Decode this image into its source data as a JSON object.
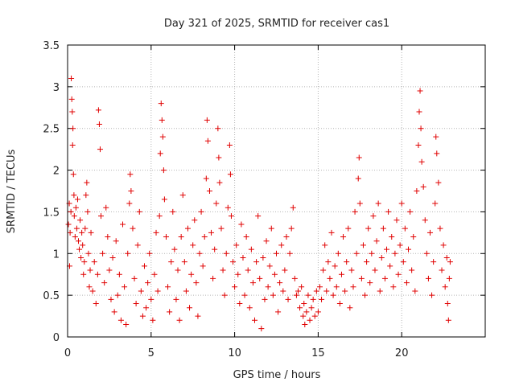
{
  "chart_data": {
    "type": "scatter",
    "title": "Day 321 of 2025, SRMTID for receiver cas1",
    "xlabel": "GPS time / hours",
    "ylabel": "SRMTID / TECUs",
    "xlim": [
      0,
      25
    ],
    "ylim": [
      0,
      3.5
    ],
    "x_ticks": [
      0,
      5,
      10,
      15,
      20
    ],
    "y_ticks": [
      0,
      0.5,
      1,
      1.5,
      2,
      2.5,
      3,
      3.5
    ],
    "x_tick_labels": [
      "0",
      "5",
      "10",
      "15",
      "20"
    ],
    "y_tick_labels": [
      "0",
      "0.5",
      "1",
      "1.5",
      "2",
      "2.5",
      "3",
      "3.5"
    ],
    "grid": true,
    "marker": "+",
    "color": "#e00000",
    "series": [
      {
        "name": "SRMTID",
        "points": [
          [
            0.05,
            1.35
          ],
          [
            0.1,
            1.6
          ],
          [
            0.12,
            0.85
          ],
          [
            0.15,
            1.25
          ],
          [
            0.2,
            1.5
          ],
          [
            0.22,
            3.1
          ],
          [
            0.25,
            2.85
          ],
          [
            0.28,
            2.7
          ],
          [
            0.3,
            2.3
          ],
          [
            0.32,
            2.5
          ],
          [
            0.35,
            1.95
          ],
          [
            0.38,
            1.7
          ],
          [
            0.4,
            1.45
          ],
          [
            0.45,
            1.2
          ],
          [
            0.5,
            1.55
          ],
          [
            0.55,
            1.3
          ],
          [
            0.6,
            1.65
          ],
          [
            0.65,
            1.15
          ],
          [
            0.7,
            1.05
          ],
          [
            0.75,
            1.4
          ],
          [
            0.8,
            0.95
          ],
          [
            0.85,
            1.25
          ],
          [
            0.9,
            1.1
          ],
          [
            0.95,
            0.75
          ],
          [
            1.0,
            0.9
          ],
          [
            1.05,
            1.3
          ],
          [
            1.1,
            1.7
          ],
          [
            1.15,
            1.85
          ],
          [
            1.2,
            1.5
          ],
          [
            1.25,
            1.0
          ],
          [
            1.3,
            0.6
          ],
          [
            1.35,
            0.8
          ],
          [
            1.4,
            1.25
          ],
          [
            1.5,
            0.55
          ],
          [
            1.6,
            0.9
          ],
          [
            1.7,
            0.4
          ],
          [
            1.8,
            0.75
          ],
          [
            1.85,
            2.72
          ],
          [
            1.9,
            2.55
          ],
          [
            1.95,
            2.25
          ],
          [
            2.0,
            1.45
          ],
          [
            2.1,
            1.0
          ],
          [
            2.2,
            0.65
          ],
          [
            2.3,
            1.55
          ],
          [
            2.4,
            1.2
          ],
          [
            2.5,
            0.8
          ],
          [
            2.6,
            0.45
          ],
          [
            2.7,
            0.95
          ],
          [
            2.8,
            0.3
          ],
          [
            2.9,
            1.15
          ],
          [
            3.0,
            0.5
          ],
          [
            3.1,
            0.75
          ],
          [
            3.2,
            0.2
          ],
          [
            3.3,
            1.35
          ],
          [
            3.4,
            0.6
          ],
          [
            3.5,
            0.15
          ],
          [
            3.6,
            1.0
          ],
          [
            3.7,
            1.6
          ],
          [
            3.75,
            1.95
          ],
          [
            3.8,
            1.75
          ],
          [
            3.9,
            1.3
          ],
          [
            4.0,
            0.7
          ],
          [
            4.1,
            0.4
          ],
          [
            4.2,
            1.1
          ],
          [
            4.3,
            1.5
          ],
          [
            4.4,
            0.55
          ],
          [
            4.5,
            0.25
          ],
          [
            4.6,
            0.85
          ],
          [
            4.7,
            0.35
          ],
          [
            4.8,
            0.65
          ],
          [
            4.9,
            1.0
          ],
          [
            5.0,
            0.45
          ],
          [
            5.1,
            0.2
          ],
          [
            5.2,
            0.75
          ],
          [
            5.3,
            1.25
          ],
          [
            5.4,
            0.55
          ],
          [
            5.5,
            1.45
          ],
          [
            5.55,
            2.2
          ],
          [
            5.6,
            2.8
          ],
          [
            5.65,
            2.6
          ],
          [
            5.7,
            2.4
          ],
          [
            5.75,
            2.0
          ],
          [
            5.8,
            1.65
          ],
          [
            5.9,
            1.2
          ],
          [
            6.0,
            0.6
          ],
          [
            6.1,
            0.3
          ],
          [
            6.2,
            0.9
          ],
          [
            6.3,
            1.5
          ],
          [
            6.4,
            1.05
          ],
          [
            6.5,
            0.45
          ],
          [
            6.6,
            0.8
          ],
          [
            6.7,
            0.2
          ],
          [
            6.8,
            1.2
          ],
          [
            6.9,
            1.7
          ],
          [
            7.0,
            0.9
          ],
          [
            7.1,
            0.55
          ],
          [
            7.2,
            1.3
          ],
          [
            7.3,
            0.35
          ],
          [
            7.4,
            0.75
          ],
          [
            7.5,
            1.1
          ],
          [
            7.6,
            1.4
          ],
          [
            7.7,
            0.65
          ],
          [
            7.8,
            0.25
          ],
          [
            7.9,
            1.0
          ],
          [
            8.0,
            1.5
          ],
          [
            8.1,
            0.85
          ],
          [
            8.2,
            1.2
          ],
          [
            8.3,
            1.9
          ],
          [
            8.35,
            2.6
          ],
          [
            8.4,
            2.35
          ],
          [
            8.5,
            1.75
          ],
          [
            8.6,
            1.25
          ],
          [
            8.7,
            0.7
          ],
          [
            8.8,
            1.05
          ],
          [
            8.9,
            1.6
          ],
          [
            9.0,
            2.5
          ],
          [
            9.05,
            2.15
          ],
          [
            9.1,
            1.85
          ],
          [
            9.2,
            1.3
          ],
          [
            9.3,
            0.8
          ],
          [
            9.4,
            0.5
          ],
          [
            9.5,
            1.0
          ],
          [
            9.6,
            1.55
          ],
          [
            9.7,
            2.3
          ],
          [
            9.75,
            1.95
          ],
          [
            9.8,
            1.45
          ],
          [
            9.9,
            0.9
          ],
          [
            10.0,
            0.6
          ],
          [
            10.1,
            1.1
          ],
          [
            10.2,
            0.75
          ],
          [
            10.3,
            0.4
          ],
          [
            10.4,
            1.35
          ],
          [
            10.5,
            0.95
          ],
          [
            10.6,
            0.5
          ],
          [
            10.7,
            1.2
          ],
          [
            10.8,
            0.8
          ],
          [
            10.9,
            0.35
          ],
          [
            11.0,
            1.05
          ],
          [
            11.1,
            0.65
          ],
          [
            11.2,
            0.2
          ],
          [
            11.3,
            0.9
          ],
          [
            11.4,
            1.45
          ],
          [
            11.5,
            0.7
          ],
          [
            11.6,
            0.1
          ],
          [
            11.7,
            0.95
          ],
          [
            11.8,
            0.45
          ],
          [
            11.9,
            1.15
          ],
          [
            12.0,
            0.6
          ],
          [
            12.1,
            0.85
          ],
          [
            12.2,
            1.3
          ],
          [
            12.3,
            0.5
          ],
          [
            12.4,
            0.75
          ],
          [
            12.5,
            1.0
          ],
          [
            12.6,
            0.3
          ],
          [
            12.7,
            0.65
          ],
          [
            12.8,
            1.1
          ],
          [
            12.9,
            0.55
          ],
          [
            13.0,
            0.8
          ],
          [
            13.1,
            1.2
          ],
          [
            13.2,
            0.45
          ],
          [
            13.3,
            1.0
          ],
          [
            13.4,
            1.3
          ],
          [
            13.5,
            1.55
          ],
          [
            13.6,
            0.7
          ],
          [
            13.7,
            0.5
          ],
          [
            13.8,
            0.55
          ],
          [
            13.9,
            0.35
          ],
          [
            14.0,
            0.6
          ],
          [
            14.1,
            0.25
          ],
          [
            14.15,
            0.4
          ],
          [
            14.2,
            0.15
          ],
          [
            14.3,
            0.3
          ],
          [
            14.4,
            0.5
          ],
          [
            14.5,
            0.2
          ],
          [
            14.6,
            0.35
          ],
          [
            14.7,
            0.45
          ],
          [
            14.8,
            0.25
          ],
          [
            14.9,
            0.55
          ],
          [
            15.0,
            0.3
          ],
          [
            15.1,
            0.6
          ],
          [
            15.2,
            0.45
          ],
          [
            15.3,
            0.8
          ],
          [
            15.4,
            1.1
          ],
          [
            15.5,
            0.55
          ],
          [
            15.6,
            0.9
          ],
          [
            15.7,
            0.7
          ],
          [
            15.8,
            1.25
          ],
          [
            15.9,
            0.5
          ],
          [
            16.0,
            0.85
          ],
          [
            16.1,
            0.6
          ],
          [
            16.2,
            1.0
          ],
          [
            16.3,
            0.4
          ],
          [
            16.4,
            0.75
          ],
          [
            16.5,
            1.2
          ],
          [
            16.6,
            0.55
          ],
          [
            16.7,
            0.9
          ],
          [
            16.8,
            1.3
          ],
          [
            16.9,
            0.35
          ],
          [
            17.0,
            0.8
          ],
          [
            17.1,
            0.6
          ],
          [
            17.2,
            1.5
          ],
          [
            17.3,
            1.0
          ],
          [
            17.4,
            1.9
          ],
          [
            17.45,
            2.15
          ],
          [
            17.5,
            1.6
          ],
          [
            17.6,
            0.7
          ],
          [
            17.7,
            1.1
          ],
          [
            17.8,
            0.5
          ],
          [
            17.9,
            0.9
          ],
          [
            18.0,
            1.3
          ],
          [
            18.1,
            0.65
          ],
          [
            18.2,
            1.0
          ],
          [
            18.3,
            1.45
          ],
          [
            18.4,
            0.8
          ],
          [
            18.5,
            1.15
          ],
          [
            18.6,
            1.6
          ],
          [
            18.7,
            0.55
          ],
          [
            18.8,
            0.95
          ],
          [
            18.9,
            1.3
          ],
          [
            19.0,
            0.7
          ],
          [
            19.1,
            1.05
          ],
          [
            19.2,
            1.5
          ],
          [
            19.3,
            0.85
          ],
          [
            19.4,
            1.2
          ],
          [
            19.5,
            0.6
          ],
          [
            19.6,
            1.0
          ],
          [
            19.7,
            1.4
          ],
          [
            19.8,
            0.75
          ],
          [
            19.9,
            1.1
          ],
          [
            20.0,
            1.6
          ],
          [
            20.1,
            0.9
          ],
          [
            20.2,
            1.3
          ],
          [
            20.3,
            0.65
          ],
          [
            20.4,
            1.05
          ],
          [
            20.5,
            1.5
          ],
          [
            20.6,
            0.8
          ],
          [
            20.7,
            1.2
          ],
          [
            20.8,
            0.55
          ],
          [
            20.9,
            1.75
          ],
          [
            21.0,
            2.3
          ],
          [
            21.05,
            2.7
          ],
          [
            21.1,
            2.95
          ],
          [
            21.15,
            2.5
          ],
          [
            21.2,
            2.1
          ],
          [
            21.3,
            1.8
          ],
          [
            21.4,
            1.4
          ],
          [
            21.5,
            1.0
          ],
          [
            21.6,
            0.7
          ],
          [
            21.7,
            1.25
          ],
          [
            21.8,
            0.5
          ],
          [
            21.9,
            0.9
          ],
          [
            22.0,
            1.6
          ],
          [
            22.05,
            2.4
          ],
          [
            22.1,
            2.2
          ],
          [
            22.2,
            1.85
          ],
          [
            22.3,
            1.3
          ],
          [
            22.4,
            0.8
          ],
          [
            22.5,
            1.1
          ],
          [
            22.6,
            0.6
          ],
          [
            22.7,
            0.95
          ],
          [
            22.75,
            0.4
          ],
          [
            22.8,
            0.2
          ],
          [
            22.85,
            0.7
          ],
          [
            22.9,
            0.9
          ]
        ]
      }
    ]
  }
}
